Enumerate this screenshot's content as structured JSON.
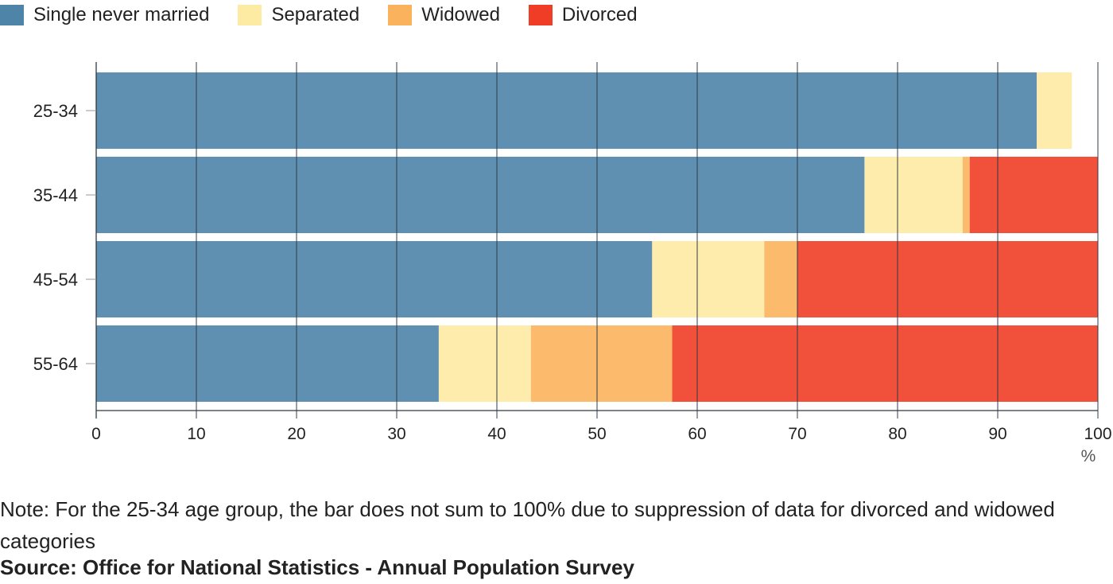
{
  "legend": [
    {
      "label": "Single never married",
      "color": "#4e84a8"
    },
    {
      "label": "Separated",
      "color": "#fdeaa3"
    },
    {
      "label": "Widowed",
      "color": "#fbb25c"
    },
    {
      "label": "Divorced",
      "color": "#ef3e25"
    }
  ],
  "chart_data": {
    "type": "bar",
    "orientation": "horizontal",
    "stacked": true,
    "categories": [
      "25-34",
      "35-44",
      "45-54",
      "55-64"
    ],
    "series": [
      {
        "name": "Single never married",
        "values": [
          93.9,
          76.7,
          55.5,
          34.2
        ],
        "color": "#4e84a8"
      },
      {
        "name": "Separated",
        "values": [
          3.5,
          9.8,
          11.2,
          9.2
        ],
        "color": "#fdeaa3"
      },
      {
        "name": "Widowed",
        "values": [
          0,
          0.7,
          3.3,
          14.1
        ],
        "color": "#fbb25c"
      },
      {
        "name": "Divorced",
        "values": [
          0,
          12.8,
          30.0,
          42.5
        ],
        "color": "#ef3e25"
      }
    ],
    "xlim": [
      0,
      100
    ],
    "xticks": [
      0,
      10,
      20,
      30,
      40,
      50,
      60,
      70,
      80,
      90,
      100
    ],
    "xunit": "%",
    "grid": true
  },
  "note": "Note: For the 25-34 age group, the bar does not sum to 100% due to suppression of data for divorced and widowed categories",
  "source": "Source: Office for National Statistics - Annual Population Survey"
}
